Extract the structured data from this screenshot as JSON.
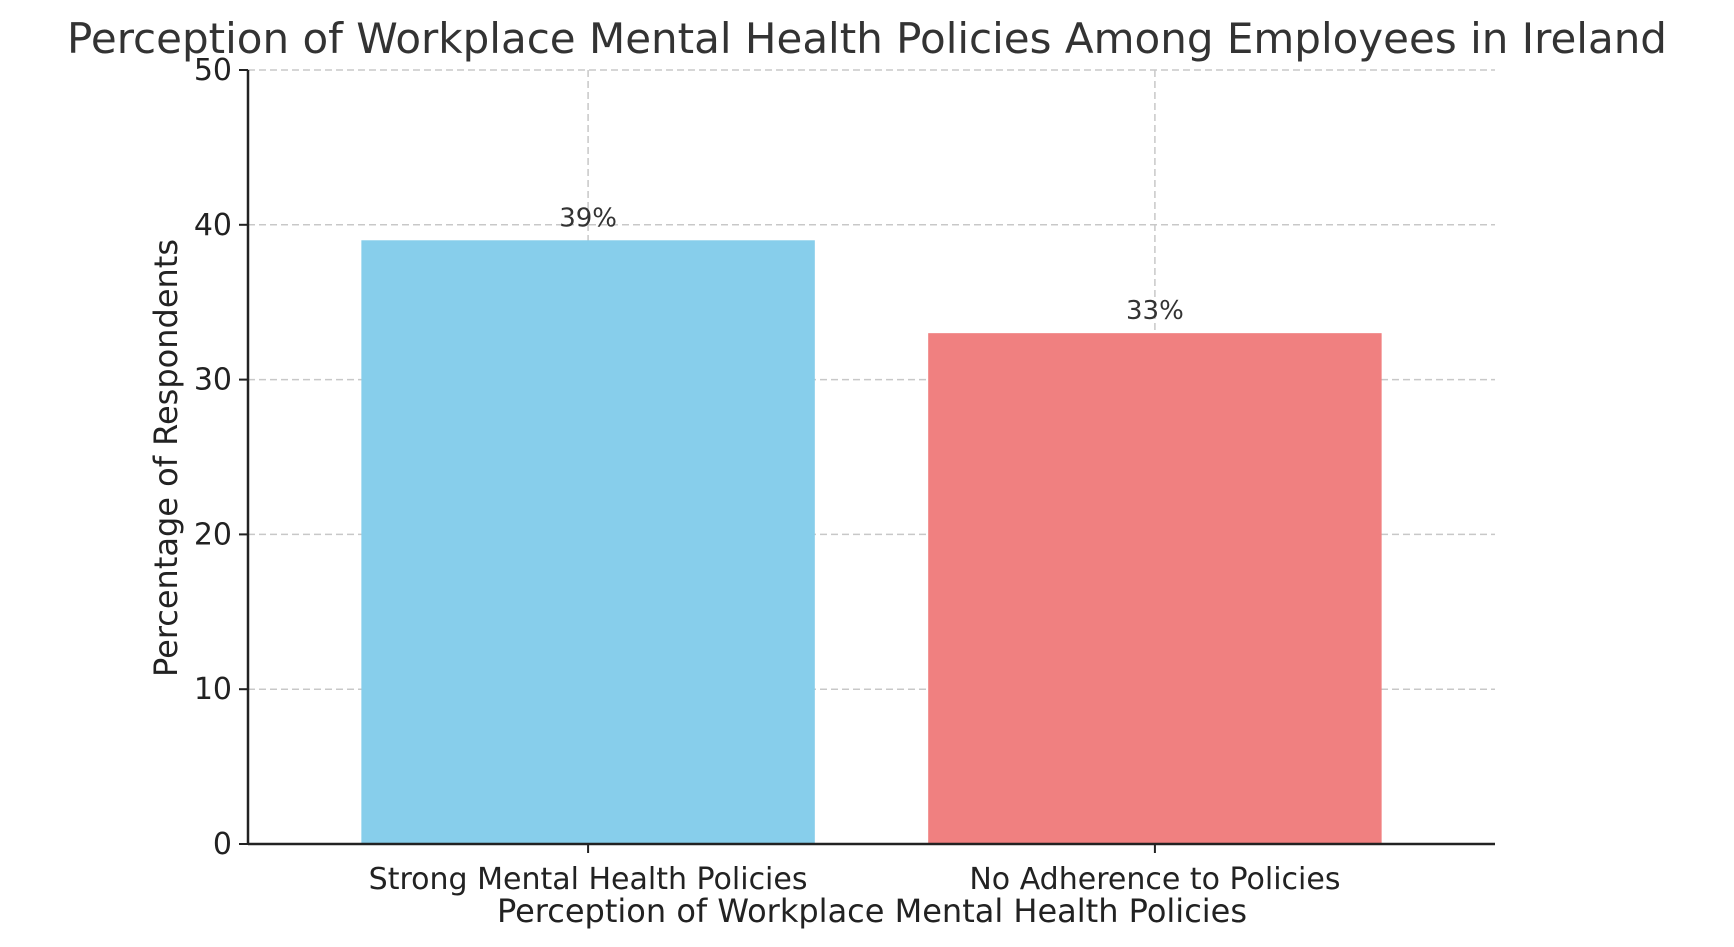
{
  "chart_data": {
    "type": "bar",
    "title": "Perception of Workplace Mental Health Policies Among Employees in Ireland",
    "xlabel": "Perception of Workplace Mental Health Policies",
    "ylabel": "Percentage of Respondents",
    "categories": [
      "Strong Mental Health Policies",
      "No Adherence to Policies"
    ],
    "values": [
      39,
      33
    ],
    "data_labels": [
      "39%",
      "33%"
    ],
    "colors": [
      "#87CEEB",
      "#F08080"
    ],
    "ylim": [
      0,
      50
    ],
    "yticks": [
      0,
      10,
      20,
      30,
      40,
      50
    ],
    "grid": true
  }
}
